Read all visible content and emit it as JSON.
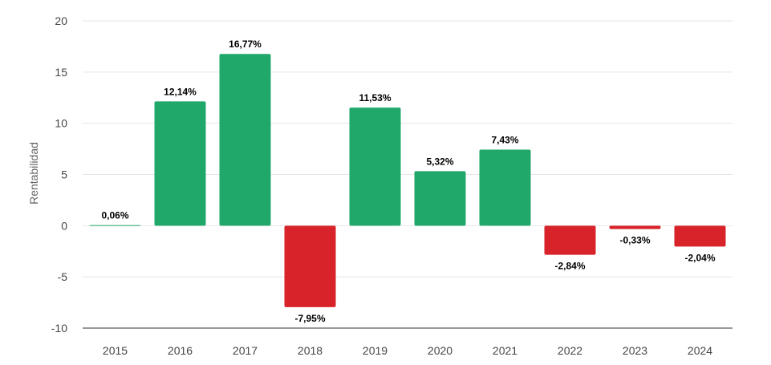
{
  "chart_data": {
    "type": "bar",
    "title": "",
    "xlabel": "",
    "ylabel": "Rentabilidad",
    "ylim": [
      -10,
      20
    ],
    "yticks": [
      20,
      15,
      10,
      5,
      0,
      -5,
      -10
    ],
    "grid": true,
    "legend": "none",
    "categories": [
      "2015",
      "2016",
      "2017",
      "2018",
      "2019",
      "2020",
      "2021",
      "2022",
      "2023",
      "2024"
    ],
    "values": [
      0.06,
      12.14,
      16.77,
      -7.95,
      11.53,
      5.32,
      7.43,
      -2.84,
      -0.33,
      -2.04
    ],
    "data_labels": [
      "0,06%",
      "12,14%",
      "16,77%",
      "-7,95%",
      "11,53%",
      "5,32%",
      "7,43%",
      "-2,84%",
      "-0,33%",
      "-2,04%"
    ],
    "colors": {
      "positive": "#1fa86a",
      "negative": "#d72329",
      "grid": "#e6e6e6",
      "axis": "#333333"
    }
  }
}
